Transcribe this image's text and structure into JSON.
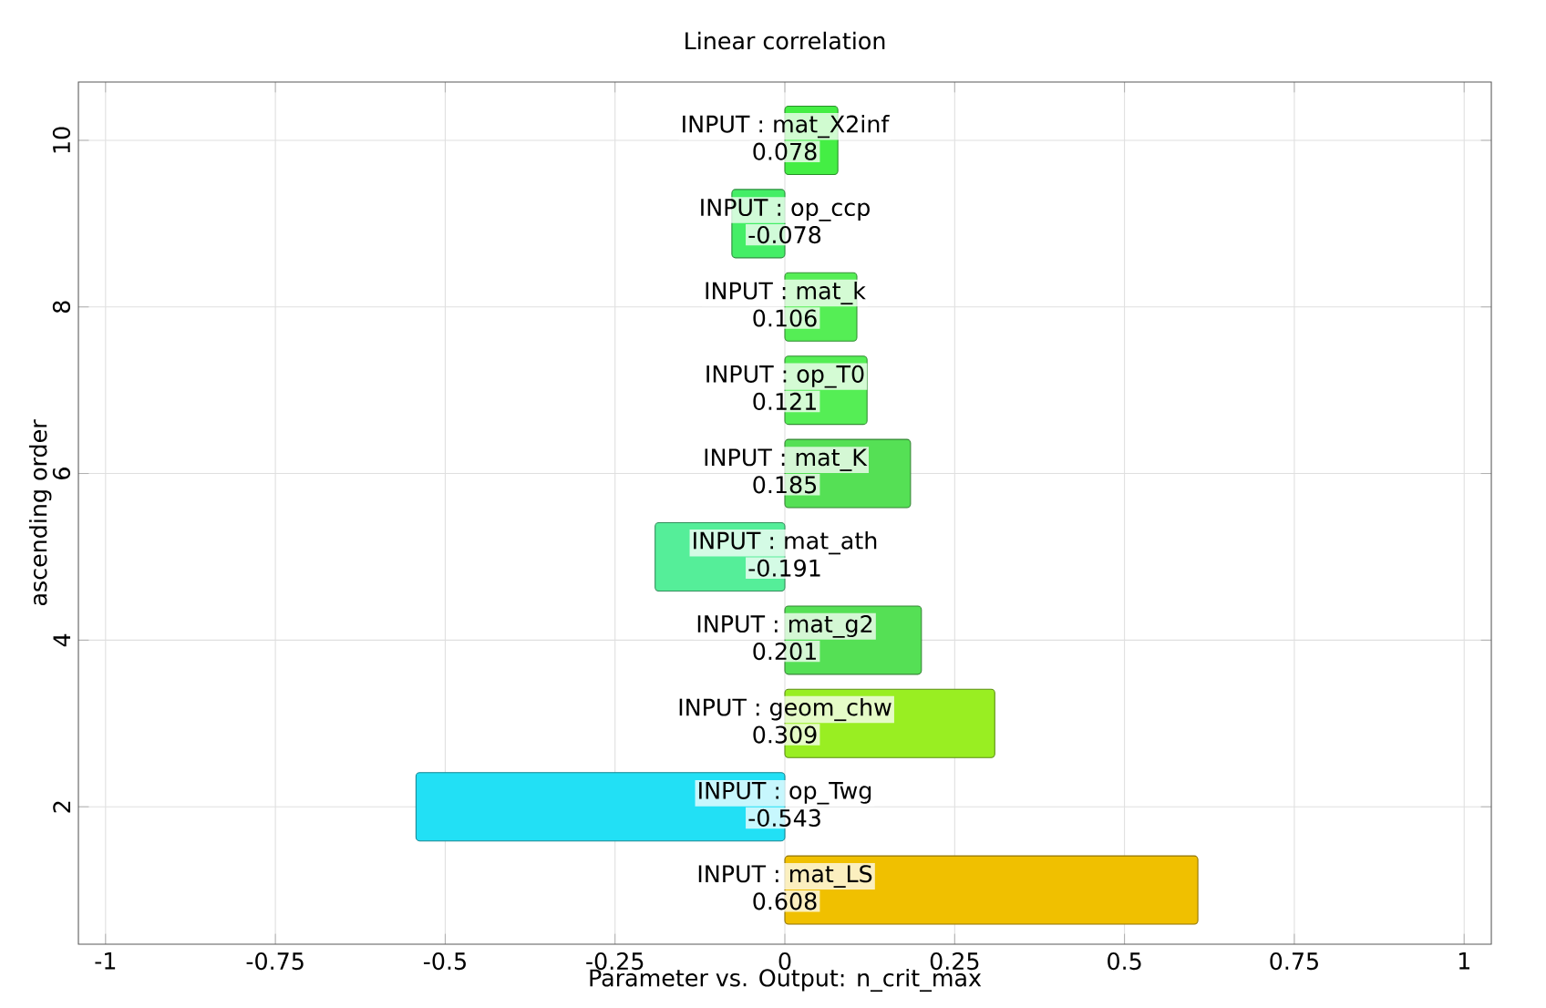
{
  "chart_data": {
    "type": "bar",
    "orientation": "horizontal",
    "title": "Linear correlation",
    "xlabel": "Parameter vs. Output: n_crit_max",
    "ylabel": "ascending order",
    "x": [
      1,
      2,
      3,
      4,
      5,
      6,
      7,
      8,
      9,
      10
    ],
    "values": [
      0.608,
      -0.543,
      0.309,
      0.201,
      -0.191,
      0.185,
      0.121,
      0.106,
      -0.078,
      0.078
    ],
    "colors": [
      "#f0c000",
      "#22e0f5",
      "#99ee22",
      "#55e055",
      "#55ee99",
      "#55e055",
      "#55ee55",
      "#55ee55",
      "#44ee66",
      "#44ee44"
    ],
    "data_labels": true,
    "annotations": [
      {
        "text": "INPUT : mat_LS",
        "y": 1
      },
      {
        "text": "INPUT : op_Twg",
        "y": 2
      },
      {
        "text": "INPUT : geom_chw",
        "y": 3
      },
      {
        "text": "INPUT : mat_g2",
        "y": 4
      },
      {
        "text": "INPUT : mat_ath",
        "y": 5
      },
      {
        "text": "INPUT : mat_K",
        "y": 6
      },
      {
        "text": "INPUT : op_T0",
        "y": 7
      },
      {
        "text": "INPUT : mat_k",
        "y": 8
      },
      {
        "text": "INPUT : op_ccp",
        "y": 9
      },
      {
        "text": "INPUT : mat_X2inf",
        "y": 10
      }
    ],
    "xlim": [
      -1.04,
      1.04
    ],
    "xticks": [
      -1,
      -0.75,
      -0.5,
      -0.25,
      0,
      0.25,
      0.5,
      0.75,
      1
    ],
    "ylim": [
      0.35,
      10.7
    ],
    "yticks": [
      2,
      4,
      6,
      8,
      10
    ],
    "grid": true
  }
}
